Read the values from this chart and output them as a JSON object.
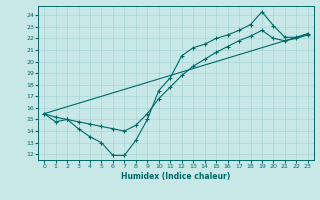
{
  "xlabel": "Humidex (Indice chaleur)",
  "bg_color": "#c8e8e8",
  "line_color": "#006868",
  "grid_color": "#a8d4d4",
  "xlim": [
    -0.5,
    23.5
  ],
  "ylim": [
    11.5,
    24.8
  ],
  "yticks": [
    12,
    13,
    14,
    15,
    16,
    17,
    18,
    19,
    20,
    21,
    22,
    23,
    24
  ],
  "xticks": [
    0,
    1,
    2,
    3,
    4,
    5,
    6,
    7,
    8,
    9,
    10,
    11,
    12,
    13,
    14,
    15,
    16,
    17,
    18,
    19,
    20,
    21,
    22,
    23
  ],
  "line1_x": [
    0,
    1,
    2,
    3,
    4,
    5,
    6,
    7,
    8,
    9,
    10,
    11,
    12,
    13,
    14,
    15,
    16,
    17,
    18,
    19,
    20,
    21,
    22,
    23
  ],
  "line1_y": [
    15.5,
    14.8,
    15.0,
    14.2,
    13.5,
    13.0,
    11.9,
    11.9,
    13.2,
    15.0,
    17.5,
    18.6,
    20.5,
    21.2,
    21.5,
    22.0,
    22.3,
    22.7,
    23.2,
    24.3,
    23.1,
    22.1,
    22.1,
    22.4
  ],
  "line2_x": [
    0,
    1,
    2,
    3,
    4,
    5,
    6,
    7,
    8,
    9,
    10,
    11,
    12,
    13,
    14,
    15,
    16,
    17,
    18,
    19,
    20,
    21,
    22,
    23
  ],
  "line2_y": [
    15.5,
    15.2,
    15.0,
    14.8,
    14.6,
    14.4,
    14.2,
    14.0,
    14.5,
    15.5,
    16.8,
    17.8,
    18.8,
    19.6,
    20.2,
    20.8,
    21.3,
    21.8,
    22.2,
    22.7,
    22.0,
    21.8,
    22.0,
    22.3
  ],
  "line3_x": [
    0,
    23
  ],
  "line3_y": [
    15.5,
    22.4
  ]
}
